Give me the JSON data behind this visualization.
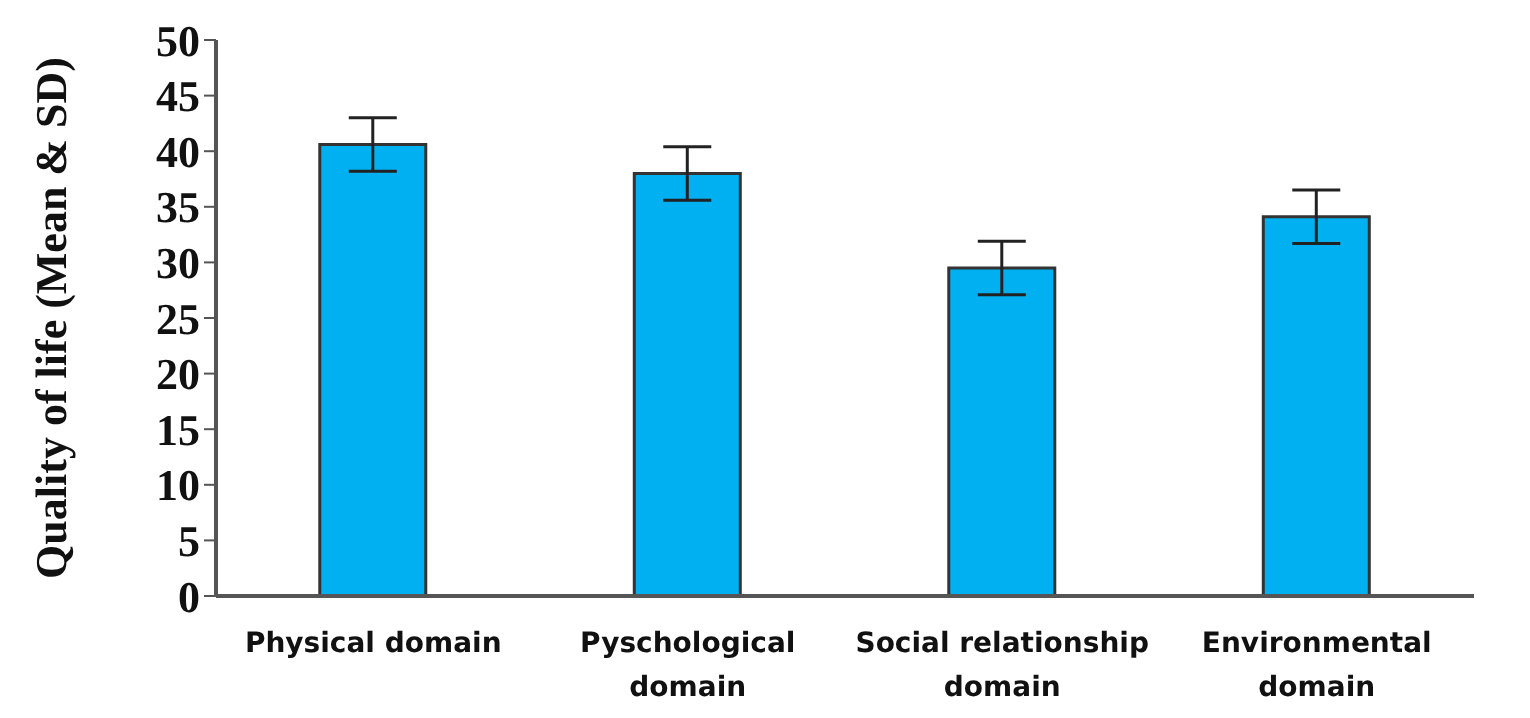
{
  "chart_data": {
    "type": "bar",
    "ylabel": "Quality of life (Mean & SD)",
    "categories": [
      "Physical domain",
      "Pyschological domain",
      "Social relationship domain",
      "Environmental domain"
    ],
    "values": [
      40.6,
      38.0,
      29.5,
      34.1
    ],
    "errors": [
      2.4,
      2.4,
      2.4,
      2.4
    ],
    "color": "#00b0f0",
    "ylim": [
      0,
      50
    ],
    "yticks": [
      0,
      5,
      10,
      15,
      20,
      25,
      30,
      35,
      40,
      45,
      50
    ],
    "grid": false,
    "legend": false
  }
}
